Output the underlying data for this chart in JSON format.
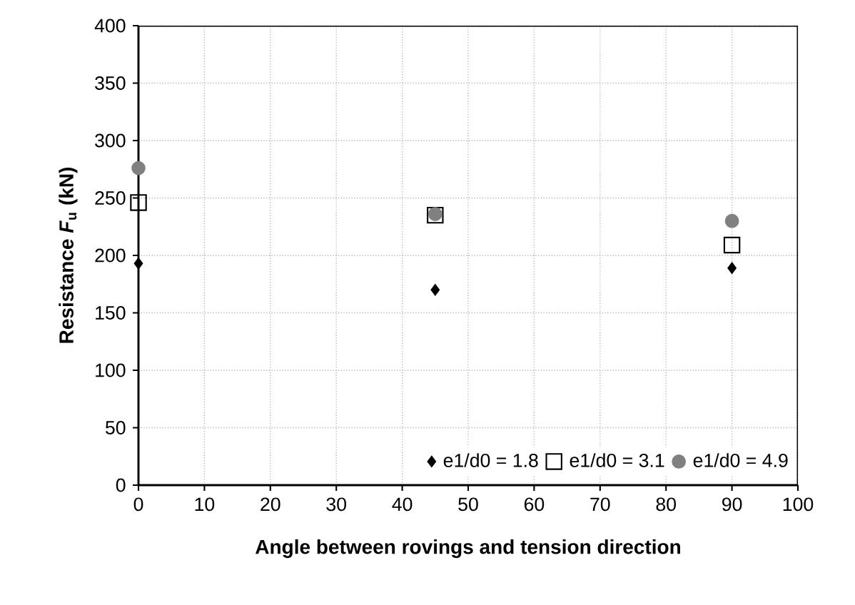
{
  "chart_data": {
    "type": "scatter",
    "xlabel": "Angle between rovings and tension direction",
    "ylabel": "Resistance *F*$_{u}$ (kN)",
    "xlim": [
      0,
      100
    ],
    "ylim": [
      0,
      400
    ],
    "xticks": [
      0,
      10,
      20,
      30,
      40,
      50,
      60,
      70,
      80,
      90,
      100
    ],
    "yticks": [
      0,
      50,
      100,
      150,
      200,
      250,
      300,
      350,
      400
    ],
    "grid": true,
    "legend": "bottom right",
    "series": [
      {
        "name": "e1/d0 = 1.8",
        "color": "#000000",
        "marker": "diamond",
        "x": [
          0,
          45,
          90
        ],
        "values": [
          193,
          170,
          189
        ]
      },
      {
        "name": "e1/d0 = 3.1",
        "color": "#000000",
        "marker": "square",
        "x": [
          0,
          45,
          90
        ],
        "values": [
          246,
          235,
          209
        ]
      },
      {
        "name": "e1/d0 = 4.9",
        "color": "#808080",
        "marker": "circle",
        "x": [
          0,
          45,
          90
        ],
        "values": [
          276,
          236,
          230
        ]
      }
    ]
  }
}
